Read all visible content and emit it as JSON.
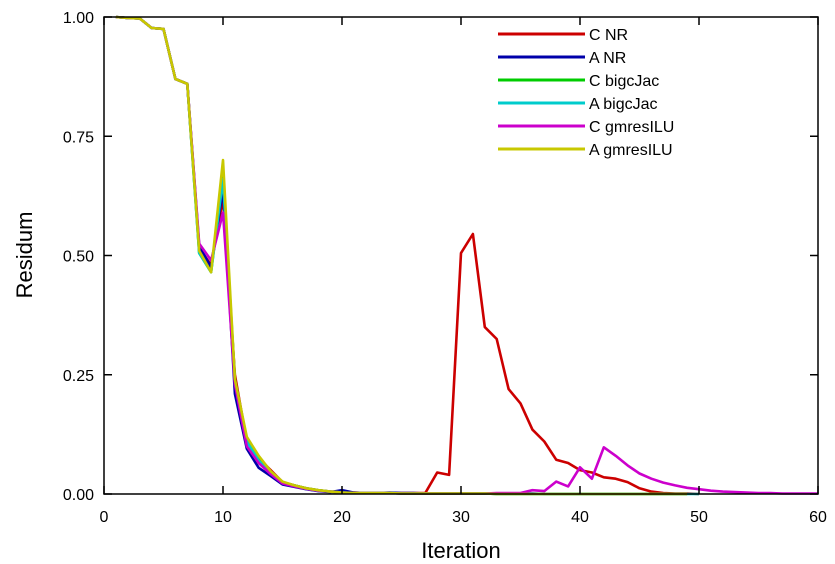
{
  "chart_data": {
    "type": "line",
    "title": "",
    "xlabel": "Iteration",
    "ylabel": "Residum",
    "xlim": [
      0,
      60
    ],
    "ylim": [
      0,
      1
    ],
    "x_ticks": [
      0,
      10,
      20,
      30,
      40,
      50,
      60
    ],
    "x_tick_labels": [
      "0",
      "10",
      "20",
      "30",
      "40",
      "50",
      "60"
    ],
    "y_ticks": [
      0,
      0.25,
      0.5,
      0.75,
      1
    ],
    "y_tick_labels": [
      "0.00",
      "0.25",
      "0.50",
      "0.75",
      "1.00"
    ],
    "grid": false,
    "legend_position": "top-right",
    "series": [
      {
        "name": "C NR",
        "color": "#cc0000",
        "x": [
          1,
          2,
          3,
          4,
          5,
          6,
          7,
          8,
          9,
          10,
          11,
          12,
          13,
          14,
          15,
          16,
          17,
          18,
          19,
          20,
          21,
          22,
          23,
          24,
          25,
          26,
          27,
          28,
          29,
          30,
          31,
          32,
          33,
          34,
          35,
          36,
          37,
          38,
          39,
          40,
          41,
          42,
          43,
          44,
          45,
          46,
          47,
          48,
          49,
          50
        ],
        "y": [
          1.0,
          0.998,
          0.997,
          0.977,
          0.975,
          0.87,
          0.86,
          0.515,
          0.48,
          0.62,
          0.25,
          0.11,
          0.075,
          0.05,
          0.025,
          0.018,
          0.012,
          0.008,
          0.005,
          0.004,
          0.003,
          0.002,
          0.002,
          0.002,
          0.002,
          0.002,
          0.002,
          0.045,
          0.04,
          0.505,
          0.545,
          0.35,
          0.325,
          0.22,
          0.19,
          0.135,
          0.11,
          0.072,
          0.065,
          0.05,
          0.045,
          0.035,
          0.032,
          0.025,
          0.012,
          0.005,
          0.002,
          0.001,
          0.001,
          0.0
        ]
      },
      {
        "name": "A NR",
        "color": "#0000aa",
        "x": [
          1,
          2,
          3,
          4,
          5,
          6,
          7,
          8,
          9,
          10,
          11,
          12,
          13,
          14,
          15,
          16,
          17,
          18,
          19,
          20,
          21,
          22,
          23,
          24,
          25,
          26,
          27,
          28,
          29,
          30,
          31,
          32,
          33,
          34,
          35,
          36,
          37,
          38,
          39,
          40,
          41,
          42,
          43,
          44,
          45,
          46,
          47,
          48,
          49
        ],
        "y": [
          1.0,
          0.998,
          0.997,
          0.977,
          0.975,
          0.87,
          0.86,
          0.52,
          0.475,
          0.64,
          0.21,
          0.095,
          0.055,
          0.038,
          0.02,
          0.015,
          0.01,
          0.006,
          0.004,
          0.008,
          0.003,
          0.002,
          0.002,
          0.003,
          0.002,
          0.002,
          0.001,
          0.001,
          0.001,
          0.001,
          0.001,
          0.001,
          0.001,
          0.001,
          0.001,
          0.001,
          0.0,
          0.0,
          0.0,
          0.0,
          0.0,
          0.0,
          0.0,
          0.0,
          0.0,
          0.0,
          0.0,
          0.0,
          0.0
        ]
      },
      {
        "name": "C bigcJac",
        "color": "#00cc00",
        "x": [
          1,
          2,
          3,
          4,
          5,
          6,
          7,
          8,
          9,
          10,
          11,
          12,
          13,
          14,
          15,
          16,
          17,
          18,
          19,
          20,
          21,
          22,
          23,
          24,
          25,
          26,
          27,
          28,
          29,
          30,
          31,
          32,
          33,
          34,
          35,
          36,
          37,
          38,
          39,
          40,
          41,
          42,
          43,
          44,
          45,
          46,
          47,
          48,
          49
        ],
        "y": [
          1.0,
          0.998,
          0.997,
          0.977,
          0.975,
          0.87,
          0.86,
          0.505,
          0.465,
          0.67,
          0.24,
          0.115,
          0.075,
          0.045,
          0.025,
          0.018,
          0.012,
          0.008,
          0.005,
          0.003,
          0.002,
          0.002,
          0.002,
          0.002,
          0.001,
          0.001,
          0.001,
          0.001,
          0.001,
          0.001,
          0.001,
          0.001,
          0.0,
          0.0,
          0.0,
          0.0,
          0.0,
          0.0,
          0.0,
          0.0,
          0.0,
          0.0,
          0.0,
          0.0,
          0.0,
          0.0,
          0.0,
          0.0,
          0.0
        ]
      },
      {
        "name": "A bigcJac",
        "color": "#00cccc",
        "x": [
          1,
          2,
          3,
          4,
          5,
          6,
          7,
          8,
          9,
          10,
          11,
          12,
          13,
          14,
          15,
          16,
          17,
          18,
          19,
          20,
          21,
          22,
          23,
          24,
          25,
          26,
          27,
          28,
          29,
          30,
          31,
          32,
          33,
          34,
          35,
          36,
          37,
          38,
          39,
          40,
          41,
          42,
          43,
          44,
          45,
          46,
          47,
          48,
          49,
          50
        ],
        "y": [
          1.0,
          0.998,
          0.997,
          0.977,
          0.975,
          0.87,
          0.86,
          0.505,
          0.465,
          0.66,
          0.235,
          0.11,
          0.07,
          0.045,
          0.025,
          0.017,
          0.011,
          0.007,
          0.005,
          0.003,
          0.002,
          0.002,
          0.002,
          0.002,
          0.001,
          0.001,
          0.001,
          0.001,
          0.001,
          0.001,
          0.001,
          0.001,
          0.0,
          0.0,
          0.0,
          0.0,
          0.0,
          0.0,
          0.0,
          0.0,
          0.0,
          0.0,
          0.0,
          0.0,
          0.0,
          0.0,
          0.0,
          0.0,
          0.0,
          0.0
        ]
      },
      {
        "name": "C gmresILU",
        "color": "#cc00cc",
        "x": [
          1,
          2,
          3,
          4,
          5,
          6,
          7,
          8,
          9,
          10,
          11,
          12,
          13,
          14,
          15,
          16,
          17,
          18,
          19,
          20,
          21,
          22,
          23,
          24,
          25,
          26,
          27,
          28,
          29,
          30,
          31,
          32,
          33,
          34,
          35,
          36,
          37,
          38,
          39,
          40,
          41,
          42,
          43,
          44,
          45,
          46,
          47,
          48,
          49,
          50,
          51,
          52,
          53,
          54,
          55,
          56,
          57,
          58,
          59,
          60
        ],
        "y": [
          1.0,
          0.998,
          0.997,
          0.977,
          0.975,
          0.87,
          0.86,
          0.525,
          0.49,
          0.59,
          0.23,
          0.1,
          0.065,
          0.042,
          0.022,
          0.016,
          0.011,
          0.007,
          0.005,
          0.003,
          0.002,
          0.002,
          0.002,
          0.002,
          0.001,
          0.001,
          0.001,
          0.001,
          0.001,
          0.001,
          0.001,
          0.001,
          0.002,
          0.002,
          0.002,
          0.008,
          0.006,
          0.026,
          0.016,
          0.056,
          0.032,
          0.098,
          0.08,
          0.06,
          0.043,
          0.032,
          0.024,
          0.018,
          0.013,
          0.01,
          0.007,
          0.005,
          0.004,
          0.003,
          0.002,
          0.002,
          0.001,
          0.001,
          0.001,
          0.001
        ]
      },
      {
        "name": "A gmresILU",
        "color": "#c8c800",
        "x": [
          1,
          2,
          3,
          4,
          5,
          6,
          7,
          8,
          9,
          10,
          11,
          12,
          13,
          14,
          15,
          16,
          17,
          18,
          19,
          20,
          21,
          22,
          23,
          24,
          25,
          26,
          27,
          28,
          29,
          30,
          31,
          32,
          33,
          34,
          35,
          36,
          37,
          38,
          39,
          40,
          41,
          42,
          43,
          44,
          45,
          46,
          47,
          48,
          49
        ],
        "y": [
          1.0,
          0.998,
          0.997,
          0.977,
          0.975,
          0.87,
          0.86,
          0.51,
          0.465,
          0.7,
          0.24,
          0.12,
          0.08,
          0.048,
          0.026,
          0.018,
          0.012,
          0.008,
          0.005,
          0.003,
          0.002,
          0.002,
          0.002,
          0.002,
          0.001,
          0.001,
          0.001,
          0.001,
          0.001,
          0.001,
          0.001,
          0.001,
          0.0,
          0.0,
          0.0,
          0.0,
          0.0,
          0.0,
          0.0,
          0.0,
          0.0,
          0.0,
          0.0,
          0.0,
          0.0,
          0.0,
          0.0,
          0.0,
          0.0
        ]
      }
    ]
  }
}
